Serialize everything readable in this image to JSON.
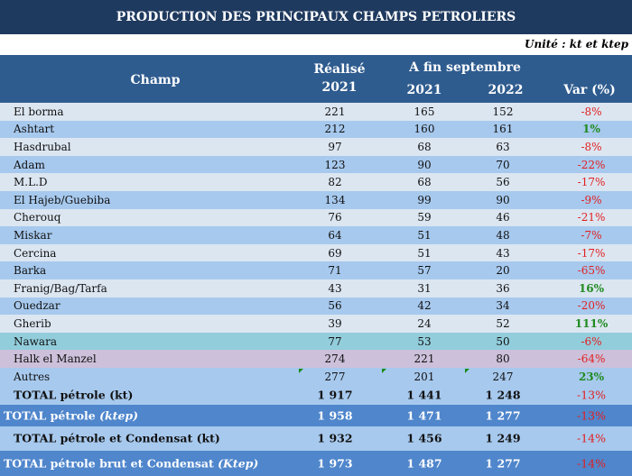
{
  "title": "PRODUCTION DES PRINCIPAUX CHAMPS PETROLIERS",
  "unit": "Unité : kt et ktep",
  "header": {
    "champ": "Champ",
    "realise": "Réalisé",
    "realise_year": "2021",
    "period": "A fin septembre",
    "y2021": "2021",
    "y2022": "2022",
    "var": "Var (%)"
  },
  "rows": [
    {
      "name": "El borma",
      "r2021": "221",
      "s2021": "165",
      "s2022": "152",
      "var": "-8%"
    },
    {
      "name": "Ashtart",
      "r2021": "212",
      "s2021": "160",
      "s2022": "161",
      "var": "1%"
    },
    {
      "name": "Hasdrubal",
      "r2021": "97",
      "s2021": "68",
      "s2022": "63",
      "var": "-8%"
    },
    {
      "name": "Adam",
      "r2021": "123",
      "s2021": "90",
      "s2022": "70",
      "var": "-22%"
    },
    {
      "name": "M.L.D",
      "r2021": "82",
      "s2021": "68",
      "s2022": "56",
      "var": "-17%"
    },
    {
      "name": "El Hajeb/Guebiba",
      "r2021": "134",
      "s2021": "99",
      "s2022": "90",
      "var": "-9%"
    },
    {
      "name": "Cherouq",
      "r2021": "76",
      "s2021": "59",
      "s2022": "46",
      "var": "-21%"
    },
    {
      "name": "Miskar",
      "r2021": "64",
      "s2021": "51",
      "s2022": "48",
      "var": "-7%"
    },
    {
      "name": "Cercina",
      "r2021": "69",
      "s2021": "51",
      "s2022": "43",
      "var": "-17%"
    },
    {
      "name": "Barka",
      "r2021": "71",
      "s2021": "57",
      "s2022": "20",
      "var": "-65%"
    },
    {
      "name": "Franig/Bag/Tarfa",
      "r2021": "43",
      "s2021": "31",
      "s2022": "36",
      "var": "16%"
    },
    {
      "name": "Ouedzar",
      "r2021": "56",
      "s2021": "42",
      "s2022": "34",
      "var": "-20%"
    },
    {
      "name": "Gherib",
      "r2021": "39",
      "s2021": "24",
      "s2022": "52",
      "var": "111%"
    },
    {
      "name": "Nawara",
      "r2021": "77",
      "s2021": "53",
      "s2022": "50",
      "var": "-6%"
    },
    {
      "name": "Halk el Manzel",
      "r2021": "274",
      "s2021": "221",
      "s2022": "80",
      "var": "-64%"
    },
    {
      "name": "Autres",
      "r2021": "277",
      "s2021": "201",
      "s2022": "247",
      "var": "23%"
    }
  ],
  "totals": [
    {
      "label": "TOTAL pétrole (kt)",
      "unit_italic": "",
      "r2021": "1 917",
      "s2021": "1 441",
      "s2022": "1 248",
      "var": "-13%"
    },
    {
      "label": "TOTAL pétrole ",
      "unit_italic": "(ktep)",
      "r2021": "1 958",
      "s2021": "1 471",
      "s2022": "1 277",
      "var": "-13%"
    },
    {
      "label": "TOTAL pétrole et Condensat (kt)",
      "unit_italic": "",
      "r2021": "1 932",
      "s2021": "1 456",
      "s2022": "1 249",
      "var": "-14%"
    },
    {
      "label": "TOTAL pétrole brut et Condensat ",
      "unit_italic": "(Ktep)",
      "r2021": "1 973",
      "s2021": "1 487",
      "s2022": "1 277",
      "var": "-14%"
    }
  ],
  "colors": {
    "light": "#dce6f1",
    "blue": "#a7c9ee",
    "nawara": "#92cddc",
    "halk": "#ccc0da",
    "total_light": "#a7c9ee",
    "total_dark": "#4f86cc"
  }
}
